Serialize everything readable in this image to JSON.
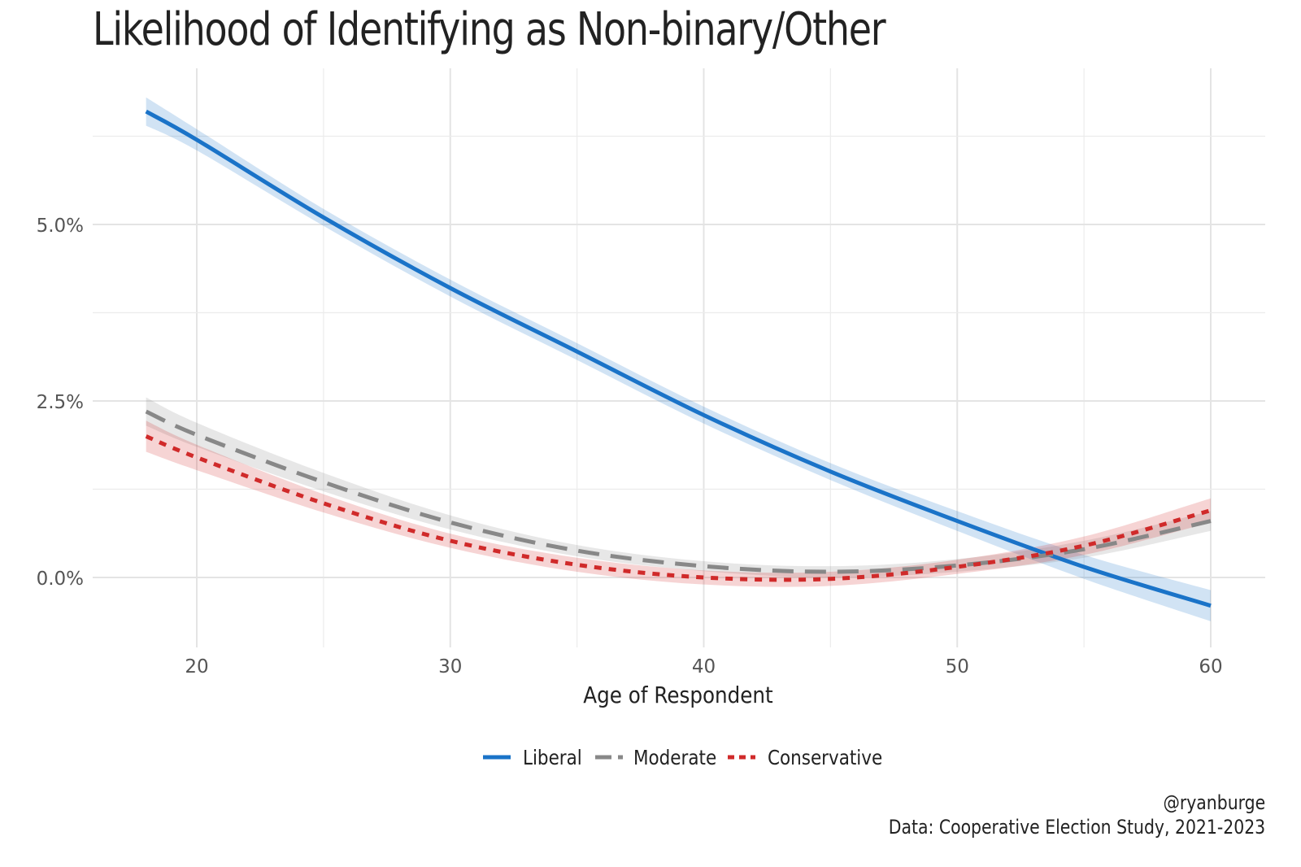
{
  "chart_data": {
    "type": "line",
    "title": "Likelihood of Identifying as Non-binary/Other",
    "xlabel": "Age of Respondent",
    "ylabel": "",
    "xlim": [
      16,
      62
    ],
    "ylim": [
      -1.0,
      7.2
    ],
    "x_ticks": [
      20,
      30,
      40,
      50,
      60
    ],
    "x_tick_labels": [
      "20",
      "30",
      "40",
      "50",
      "60"
    ],
    "y_ticks": [
      0,
      2.5,
      5.0
    ],
    "y_tick_labels": [
      "0.0%",
      "2.5%",
      "5.0%"
    ],
    "grid": true,
    "legend_position": "bottom",
    "x": [
      18,
      20,
      25,
      30,
      35,
      40,
      45,
      50,
      55,
      60
    ],
    "series": [
      {
        "name": "Liberal",
        "color": "#1a73c8",
        "dash": "solid",
        "values": [
          6.6,
          6.2,
          5.1,
          4.1,
          3.2,
          2.3,
          1.5,
          0.8,
          0.15,
          -0.4
        ],
        "ci_low": [
          6.4,
          6.05,
          4.98,
          3.98,
          3.08,
          2.18,
          1.38,
          0.66,
          -0.02,
          -0.62
        ],
        "ci_high": [
          6.8,
          6.35,
          5.22,
          4.22,
          3.32,
          2.42,
          1.62,
          0.94,
          0.32,
          -0.18
        ]
      },
      {
        "name": "Moderate",
        "color": "#888888",
        "dash": "longdash",
        "values": [
          2.35,
          2.02,
          1.35,
          0.78,
          0.38,
          0.16,
          0.08,
          0.17,
          0.4,
          0.8
        ],
        "ci_low": [
          2.15,
          1.85,
          1.22,
          0.68,
          0.3,
          0.09,
          0.0,
          0.08,
          0.28,
          0.66
        ],
        "ci_high": [
          2.55,
          2.19,
          1.48,
          0.88,
          0.46,
          0.23,
          0.16,
          0.26,
          0.52,
          0.94
        ]
      },
      {
        "name": "Conservative",
        "color": "#d02a2a",
        "dash": "dotted",
        "values": [
          2.0,
          1.7,
          1.05,
          0.52,
          0.18,
          0.0,
          -0.02,
          0.15,
          0.45,
          0.95
        ],
        "ci_low": [
          1.78,
          1.52,
          0.92,
          0.42,
          0.08,
          -0.1,
          -0.12,
          0.05,
          0.32,
          0.78
        ],
        "ci_high": [
          2.22,
          1.88,
          1.18,
          0.62,
          0.28,
          0.1,
          0.08,
          0.25,
          0.58,
          1.12
        ]
      }
    ]
  },
  "caption": {
    "handle": "@ryanburge",
    "source": "Data: Cooperative Election Study, 2021-2023"
  }
}
